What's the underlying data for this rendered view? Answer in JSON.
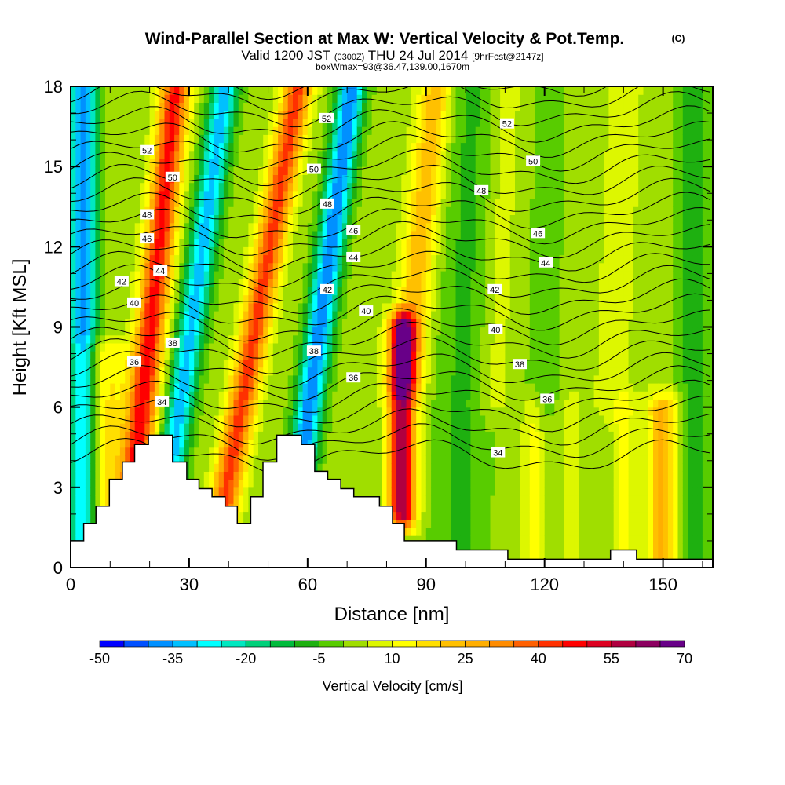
{
  "header": {
    "title": "Wind-Parallel Section at Max W: Vertical Velocity & Pot.Temp.",
    "copyright": "(C)",
    "valid_prefix": "Valid 1200 JST",
    "valid_utc": "(0300Z)",
    "valid_date": "THU 24 Jul 2014",
    "forecast": "[9hrFcst@2147z]",
    "box_info": "boxWmax=93@36.47,139.00,1670m"
  },
  "chart_data": {
    "type": "heatmap",
    "title": "Wind-Parallel Section at Max W: Vertical Velocity & Pot.Temp.",
    "xlabel": "Distance [nm]",
    "ylabel": "Height [Kft MSL]",
    "xlim": [
      0,
      162.6
    ],
    "ylim": [
      0,
      18
    ],
    "xticks": [
      "0",
      "30",
      "60",
      "90",
      "120",
      "150"
    ],
    "yticks": [
      "0",
      "3",
      "6",
      "9",
      "12",
      "15",
      "18"
    ],
    "colorbar": {
      "label": "Vertical Velocity [cm/s]",
      "min": -50,
      "max": 70,
      "step": 5,
      "tick_labels": [
        "-50",
        "-35",
        "-20",
        "-5",
        "10",
        "25",
        "40",
        "55",
        "70"
      ],
      "colors": [
        "#0000ff",
        "#0050ff",
        "#0090ff",
        "#00c0ff",
        "#00ffff",
        "#00e8c0",
        "#00d07a",
        "#00bb3c",
        "#1eb010",
        "#58cc00",
        "#a0de00",
        "#ddf700",
        "#ffff00",
        "#ffdf00",
        "#ffc000",
        "#ffae00",
        "#ff8c00",
        "#ff6000",
        "#ff3000",
        "#ff0000",
        "#dd0020",
        "#b00040",
        "#8c0060",
        "#680088"
      ]
    },
    "w_background": 2,
    "w_features": [
      {
        "x0": 3,
        "tilt": 0,
        "amp": -40,
        "width": 2.5,
        "zmin": 0,
        "zmax": 18
      },
      {
        "x0": 14,
        "tilt": 0.7,
        "amp": 45,
        "width": 2.6,
        "zmin": 0,
        "zmax": 18
      },
      {
        "x0": 8,
        "tilt": 0,
        "amp": 15,
        "width": 5,
        "zmin": 0,
        "zmax": 8
      },
      {
        "x0": 22,
        "tilt": 0.95,
        "amp": -35,
        "width": 2.4,
        "zmin": 0,
        "zmax": 18
      },
      {
        "x0": 36,
        "tilt": 1.2,
        "amp": 40,
        "width": 2.6,
        "zmin": 0,
        "zmax": 18
      },
      {
        "x0": 55,
        "tilt": 0.9,
        "amp": -42,
        "width": 2.4,
        "zmin": 0,
        "zmax": 18
      },
      {
        "x0": 80,
        "tilt": 0.7,
        "amp": 22,
        "width": 3,
        "zmin": 7,
        "zmax": 18
      },
      {
        "x0": 84,
        "tilt": 0,
        "amp": 58,
        "width": 2.4,
        "zmin": 2,
        "zmax": 9
      },
      {
        "x0": 98,
        "tilt": 0.2,
        "amp": -8,
        "width": 5,
        "zmin": 0,
        "zmax": 18
      },
      {
        "x0": 117,
        "tilt": 0,
        "amp": 10,
        "width": 1.8,
        "zmin": 0,
        "zmax": 6
      },
      {
        "x0": 127,
        "tilt": 0,
        "amp": 7,
        "width": 1.5,
        "zmin": 0,
        "zmax": 6
      },
      {
        "x0": 140,
        "tilt": 0,
        "amp": 9,
        "width": 2,
        "zmin": 0,
        "zmax": 6
      },
      {
        "x0": 150,
        "tilt": 0,
        "amp": 24,
        "width": 2.8,
        "zmin": 0,
        "zmax": 6
      },
      {
        "x0": 105,
        "tilt": 0.3,
        "amp": 6,
        "width": 3,
        "zmin": 6,
        "zmax": 18
      },
      {
        "x0": 118,
        "tilt": 0.2,
        "amp": -5,
        "width": 3,
        "zmin": 6,
        "zmax": 18
      },
      {
        "x0": 135,
        "tilt": 0.3,
        "amp": 5,
        "width": 4,
        "zmin": 6,
        "zmax": 18
      },
      {
        "x0": 158,
        "tilt": 0,
        "amp": -10,
        "width": 3,
        "zmin": 0,
        "zmax": 18
      }
    ],
    "terrain_steps": [
      [
        0,
        1.0
      ],
      [
        3.3,
        1.65
      ],
      [
        6.4,
        2.3
      ],
      [
        9.8,
        3.3
      ],
      [
        13.1,
        3.95
      ],
      [
        16.2,
        4.6
      ],
      [
        19.7,
        4.95
      ],
      [
        25.8,
        3.95
      ],
      [
        29.4,
        3.3
      ],
      [
        32.5,
        2.95
      ],
      [
        35.8,
        2.65
      ],
      [
        39.1,
        2.3
      ],
      [
        42.2,
        1.65
      ],
      [
        45.6,
        2.65
      ],
      [
        48.7,
        3.95
      ],
      [
        52.2,
        4.95
      ],
      [
        58.4,
        4.6
      ],
      [
        61.8,
        3.6
      ],
      [
        65.1,
        3.3
      ],
      [
        68.4,
        2.95
      ],
      [
        71.7,
        2.65
      ],
      [
        78.2,
        2.3
      ],
      [
        81.5,
        1.65
      ],
      [
        84.5,
        1.0
      ],
      [
        97.7,
        0.66
      ],
      [
        110.7,
        0.31
      ],
      [
        136.7,
        0.66
      ],
      [
        143.3,
        0.31
      ],
      [
        162.6,
        0.31
      ]
    ],
    "theta_levels": [
      30,
      31,
      32,
      33,
      34,
      35,
      36,
      37,
      38,
      39,
      40,
      41,
      42,
      43,
      44,
      45,
      46,
      47,
      48,
      49,
      50,
      51,
      52,
      53,
      54,
      55,
      56
    ],
    "theta_labels": [
      {
        "text": "52",
        "x": 19.3,
        "z": 15.6
      },
      {
        "text": "50",
        "x": 25.8,
        "z": 14.6
      },
      {
        "text": "48",
        "x": 19.3,
        "z": 13.2
      },
      {
        "text": "46",
        "x": 19.3,
        "z": 12.3
      },
      {
        "text": "44",
        "x": 22.7,
        "z": 11.1
      },
      {
        "text": "42",
        "x": 12.9,
        "z": 10.7
      },
      {
        "text": "40",
        "x": 16.1,
        "z": 9.9
      },
      {
        "text": "38",
        "x": 25.8,
        "z": 8.4
      },
      {
        "text": "36",
        "x": 16.1,
        "z": 7.7
      },
      {
        "text": "34",
        "x": 23.1,
        "z": 6.2
      },
      {
        "text": "52",
        "x": 64.8,
        "z": 16.8
      },
      {
        "text": "50",
        "x": 61.6,
        "z": 14.9
      },
      {
        "text": "48",
        "x": 65,
        "z": 13.6
      },
      {
        "text": "46",
        "x": 71.6,
        "z": 12.6
      },
      {
        "text": "44",
        "x": 71.6,
        "z": 11.6
      },
      {
        "text": "42",
        "x": 65,
        "z": 10.4
      },
      {
        "text": "40",
        "x": 74.8,
        "z": 9.6
      },
      {
        "text": "38",
        "x": 61.6,
        "z": 8.1
      },
      {
        "text": "36",
        "x": 71.6,
        "z": 7.1
      },
      {
        "text": "52",
        "x": 110.5,
        "z": 16.6
      },
      {
        "text": "50",
        "x": 117.1,
        "z": 15.2
      },
      {
        "text": "48",
        "x": 104,
        "z": 14.1
      },
      {
        "text": "46",
        "x": 118.3,
        "z": 12.5
      },
      {
        "text": "44",
        "x": 120.3,
        "z": 11.4
      },
      {
        "text": "42",
        "x": 107.4,
        "z": 10.4
      },
      {
        "text": "40",
        "x": 107.6,
        "z": 8.9
      },
      {
        "text": "38",
        "x": 113.7,
        "z": 7.6
      },
      {
        "text": "36",
        "x": 120.7,
        "z": 6.3
      },
      {
        "text": "34",
        "x": 108.2,
        "z": 4.3
      }
    ]
  }
}
